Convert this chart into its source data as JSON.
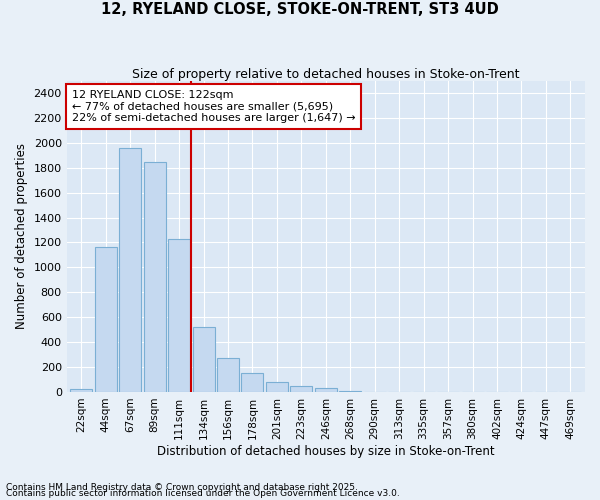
{
  "title1": "12, RYELAND CLOSE, STOKE-ON-TRENT, ST3 4UD",
  "title2": "Size of property relative to detached houses in Stoke-on-Trent",
  "xlabel": "Distribution of detached houses by size in Stoke-on-Trent",
  "ylabel": "Number of detached properties",
  "bar_color": "#c5d9f0",
  "bar_edgecolor": "#7bafd4",
  "categories": [
    "22sqm",
    "44sqm",
    "67sqm",
    "89sqm",
    "111sqm",
    "134sqm",
    "156sqm",
    "178sqm",
    "201sqm",
    "223sqm",
    "246sqm",
    "268sqm",
    "290sqm",
    "313sqm",
    "335sqm",
    "357sqm",
    "380sqm",
    "402sqm",
    "424sqm",
    "447sqm",
    "469sqm"
  ],
  "values": [
    25,
    1160,
    1960,
    1845,
    1230,
    520,
    270,
    150,
    80,
    45,
    35,
    8,
    3,
    2,
    2,
    1,
    1,
    1,
    1,
    1,
    1
  ],
  "vline_color": "#cc0000",
  "annotation_title": "12 RYELAND CLOSE: 122sqm",
  "annotation_line2": "← 77% of detached houses are smaller (5,695)",
  "annotation_line3": "22% of semi-detached houses are larger (1,647) →",
  "annotation_box_color": "#cc0000",
  "ylim": [
    0,
    2500
  ],
  "yticks": [
    0,
    200,
    400,
    600,
    800,
    1000,
    1200,
    1400,
    1600,
    1800,
    2000,
    2200,
    2400
  ],
  "background_color": "#dce8f5",
  "grid_color": "#ffffff",
  "fig_bg_color": "#e8f0f8",
  "footnote1": "Contains HM Land Registry data © Crown copyright and database right 2025.",
  "footnote2": "Contains public sector information licensed under the Open Government Licence v3.0."
}
